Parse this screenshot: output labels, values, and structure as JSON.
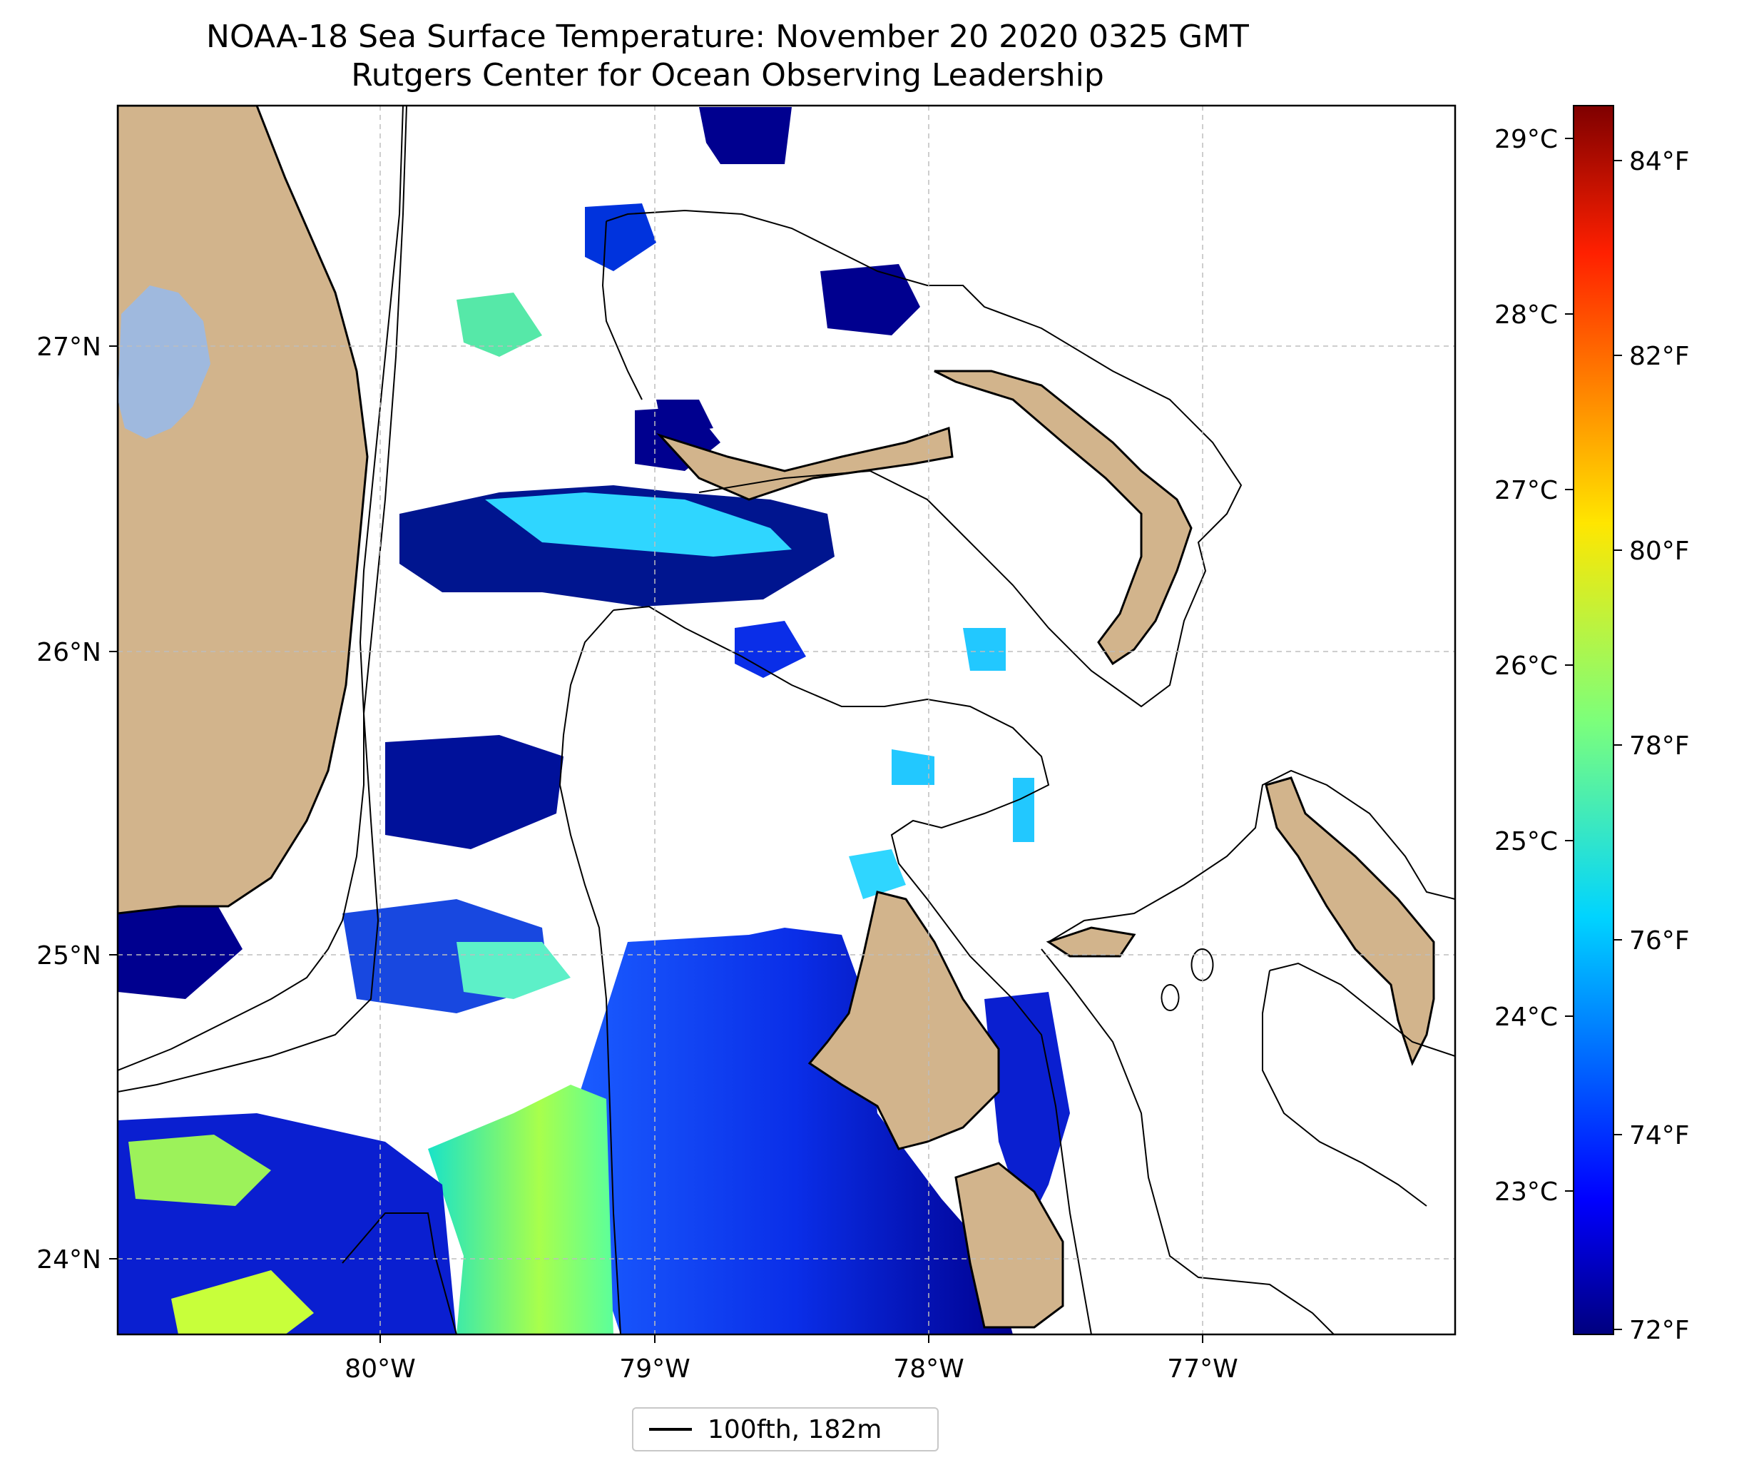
{
  "title": "NOAA-18 Sea Surface Temperature: November 20 2020 0325 GMT",
  "subtitle": "Rutgers Center for Ocean Observing Leadership",
  "map": {
    "lon_range": [
      -80.96,
      -76.08
    ],
    "lat_range": [
      23.74,
      27.8
    ],
    "x_ticks": [
      "80°W",
      "79°W",
      "78°W",
      "77°W"
    ],
    "y_ticks": [
      "27°N",
      "26°N",
      "25°N",
      "24°N"
    ],
    "grid": true,
    "land_color": "#d2b48c",
    "lake_color": "#9fb9de",
    "contour_color": "#000000"
  },
  "colorbar": {
    "celsius_ticks": [
      "29°C",
      "28°C",
      "27°C",
      "26°C",
      "25°C",
      "24°C",
      "23°C"
    ],
    "fahrenheit_ticks": [
      "84°F",
      "82°F",
      "80°F",
      "78°F",
      "76°F",
      "74°F",
      "72°F"
    ],
    "colormap": "jet"
  },
  "legend": {
    "label": "100fth, 182m",
    "placement": "bottom-center"
  }
}
